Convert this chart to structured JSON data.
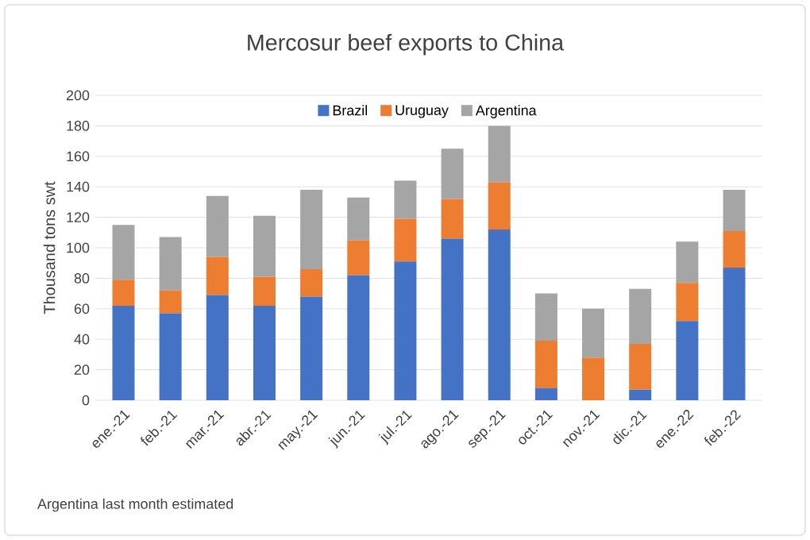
{
  "chart_data": {
    "type": "bar",
    "stacked": true,
    "title": "Mercosur beef exports to China",
    "ylabel": "Thousand tons swt",
    "categories": [
      "ene.-21",
      "feb.-21",
      "mar.-21",
      "abr.-21",
      "may.-21",
      "jun.-21",
      "jul.-21",
      "ago.-21",
      "sep.-21",
      "oct.-21",
      "nov.-21",
      "dic.-21",
      "ene.-22",
      "feb.-22"
    ],
    "series": [
      {
        "name": "Brazil",
        "color": "#4472c4",
        "values": [
          62,
          57,
          69,
          62,
          68,
          82,
          91,
          106,
          112,
          8,
          0,
          7,
          52,
          87
        ]
      },
      {
        "name": "Uruguay",
        "color": "#ed7d31",
        "values": [
          17,
          15,
          25,
          19,
          18,
          23,
          28,
          26,
          31,
          31,
          28,
          30,
          25,
          24
        ]
      },
      {
        "name": "Argentina",
        "color": "#a5a5a5",
        "values": [
          36,
          35,
          40,
          40,
          52,
          28,
          25,
          33,
          37,
          31,
          32,
          36,
          27,
          27
        ]
      }
    ],
    "ylim": [
      0,
      200
    ],
    "yticks": [
      0,
      20,
      40,
      60,
      80,
      100,
      120,
      140,
      160,
      180,
      200
    ],
    "grid": "y",
    "legend": "top",
    "annotations": [
      "Argentina last month estimated"
    ]
  }
}
